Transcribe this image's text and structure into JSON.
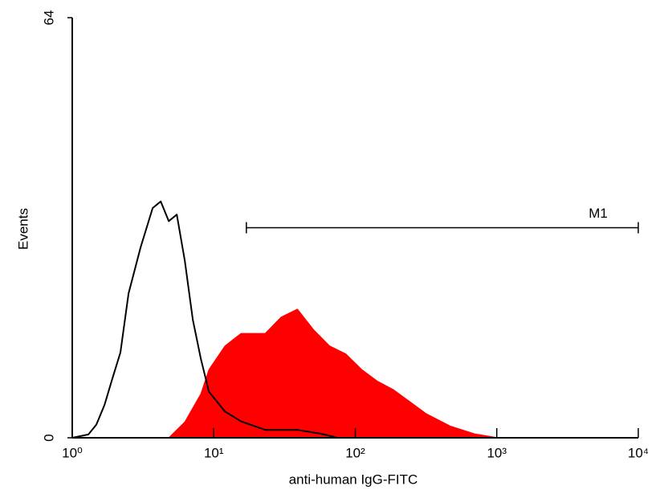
{
  "chart_data": {
    "type": "histogram-overlay",
    "xlabel": "anti-human IgG-FITC",
    "ylabel": "Events",
    "xscale": "log",
    "xlim": [
      1,
      10000
    ],
    "ylim": [
      0,
      64
    ],
    "xticks": [
      {
        "value": 1,
        "label": "10⁰"
      },
      {
        "value": 10,
        "label": "10¹"
      },
      {
        "value": 100,
        "label": "10²"
      },
      {
        "value": 1000,
        "label": "10³"
      },
      {
        "value": 10000,
        "label": "10⁴"
      }
    ],
    "yticks": [
      0,
      64
    ],
    "series": [
      {
        "color": "#ff0000",
        "filled": true,
        "x": [
          4.81,
          6.24,
          8.11,
          9.25,
          12,
          15.6,
          23.1,
          30,
          39,
          50.6,
          65.8,
          85.5,
          111,
          144,
          187,
          243,
          316,
          468,
          697,
          1024
        ],
        "values": [
          0,
          2.4,
          6.7,
          10.4,
          14,
          15.9,
          15.9,
          18.4,
          19.6,
          16.5,
          14,
          12.8,
          10.4,
          8.6,
          7.3,
          5.5,
          3.7,
          1.8,
          0.6,
          0
        ]
      },
      {
        "color": "#000000",
        "filled": false,
        "x": [
          1,
          1.3,
          1.48,
          1.69,
          1.92,
          2.19,
          2.5,
          3.04,
          3.7,
          4.22,
          4.81,
          5.48,
          6.24,
          7.11,
          8.11,
          9.25,
          12,
          15.6,
          23.1,
          39,
          57.7,
          75
        ],
        "values": [
          0,
          0.5,
          2,
          5,
          9,
          13,
          22,
          29,
          35,
          36,
          33,
          34,
          27,
          18,
          12,
          7,
          4,
          2.5,
          1.2,
          1.2,
          0.6,
          0
        ]
      }
    ],
    "marker": {
      "label": "M1",
      "x": [
        17,
        10000
      ],
      "y": 32
    }
  }
}
